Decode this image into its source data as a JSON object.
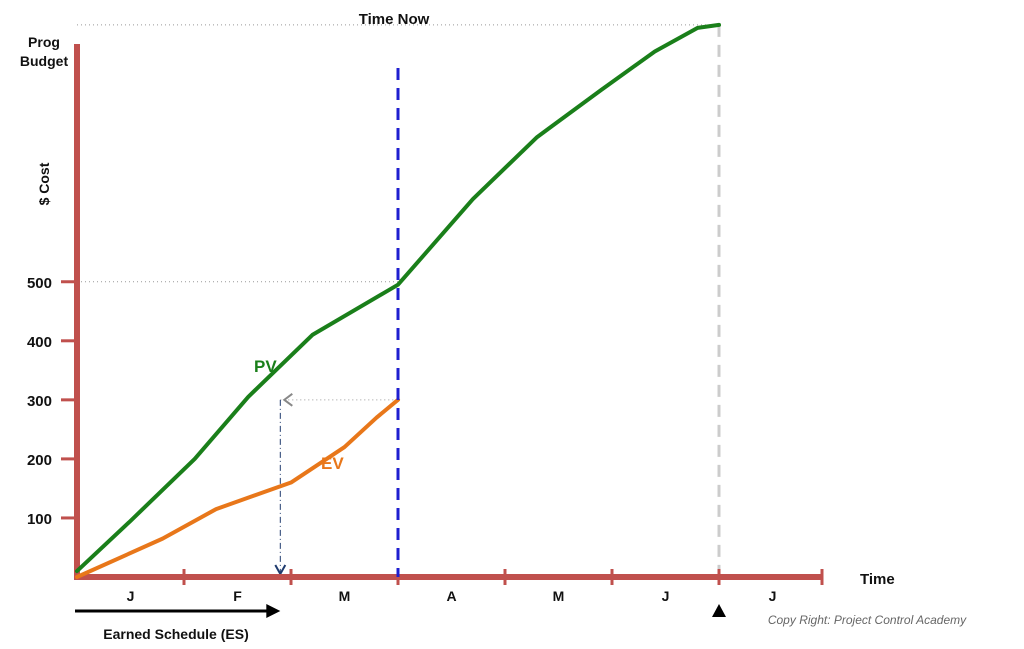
{
  "chart_data": {
    "type": "line",
    "time_now_label": "Time Now",
    "ylabel_top": [
      "Prog",
      "Budget"
    ],
    "ylabel": "$ Cost",
    "xlabel": "Time",
    "y_ticks": [
      100,
      200,
      300,
      400,
      500
    ],
    "months": [
      "J",
      "F",
      "M",
      "A",
      "M",
      "J",
      "J"
    ],
    "x_range": [
      0,
      7
    ],
    "y_range": [
      0,
      1000
    ],
    "time_now_x": 3.0,
    "budget_at_completion_x": 6.0,
    "series": [
      {
        "name": "PV",
        "color": "#1a7f1a",
        "points": [
          [
            0,
            10
          ],
          [
            0.5,
            95
          ],
          [
            1.1,
            200
          ],
          [
            1.6,
            305
          ],
          [
            2.2,
            410
          ],
          [
            3.0,
            495
          ],
          [
            3.7,
            640
          ],
          [
            4.3,
            745
          ],
          [
            4.9,
            825
          ],
          [
            5.4,
            890
          ],
          [
            5.8,
            930
          ],
          [
            6.0,
            935
          ]
        ]
      },
      {
        "name": "EV",
        "color": "#e8771a",
        "points": [
          [
            0,
            0
          ],
          [
            0.8,
            65
          ],
          [
            1.3,
            115
          ],
          [
            2.0,
            160
          ],
          [
            2.5,
            220
          ],
          [
            2.8,
            270
          ],
          [
            3.0,
            300
          ]
        ]
      }
    ],
    "earned_schedule": {
      "label": "Earned Schedule (ES)",
      "es_x": 1.9,
      "ev_value": 300
    },
    "colors": {
      "axis": "#c0504d",
      "time_now_line": "#1f1fd0",
      "completion_line": "#cccccc",
      "projection": "#1f3b6e",
      "arrow": "#000000"
    },
    "copyright": "Copy Right: Project Control Academy"
  }
}
